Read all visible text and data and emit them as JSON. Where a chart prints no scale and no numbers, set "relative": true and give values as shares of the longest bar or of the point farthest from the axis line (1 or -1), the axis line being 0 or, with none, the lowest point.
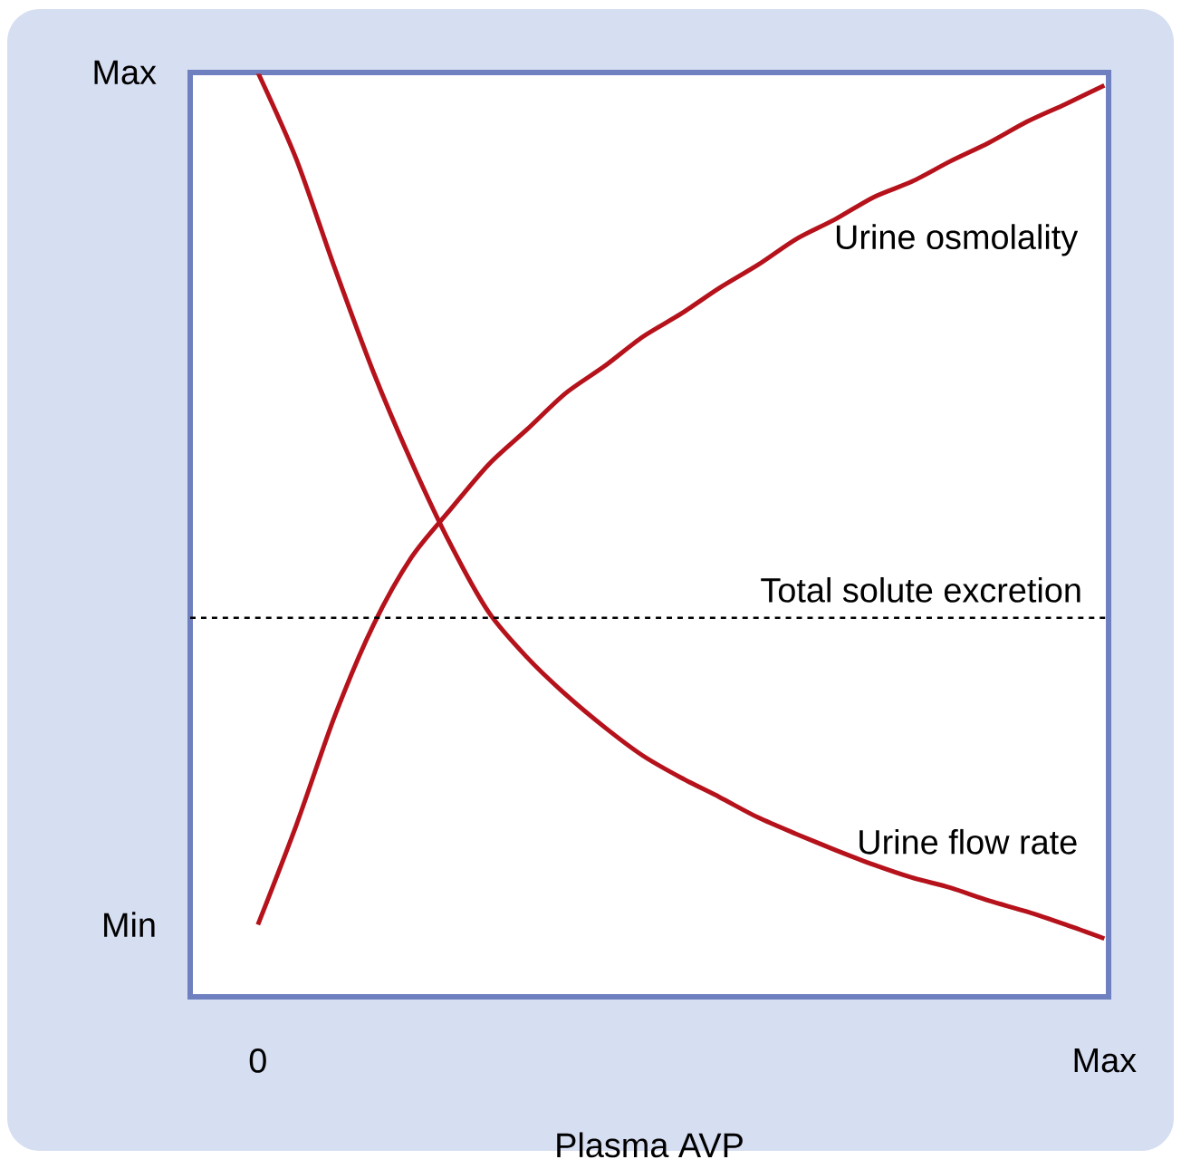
{
  "chart_data": {
    "type": "line",
    "xlabel": "Plasma AVP",
    "relative": true,
    "categories": [
      "0",
      null,
      null,
      null,
      null,
      null,
      null,
      null,
      null,
      null,
      null,
      null,
      null,
      null,
      null,
      null,
      null,
      null,
      null,
      null,
      null,
      null,
      "Max"
    ],
    "annotations": [
      "Max",
      "Min"
    ],
    "grid": false,
    "marker": "none",
    "line_style": "solid",
    "series": [
      {
        "name": "Urine osmolality",
        "color": "#b5121b",
        "values": [
          0.078,
          0.186,
          0.304,
          0.402,
          0.476,
          0.527,
          0.576,
          0.614,
          0.653,
          0.682,
          0.714,
          0.739,
          0.767,
          0.792,
          0.82,
          0.841,
          0.865,
          0.882,
          0.904,
          0.924,
          0.947,
          0.966,
          0.986
        ]
      },
      {
        "name": "Urine flow rate",
        "color": "#b5121b",
        "values": [
          1.0,
          0.906,
          0.788,
          0.676,
          0.578,
          0.49,
          0.416,
          0.367,
          0.327,
          0.292,
          0.261,
          0.237,
          0.216,
          0.194,
          0.176,
          0.159,
          0.143,
          0.129,
          0.118,
          0.104,
          0.092,
          0.078,
          0.063
        ]
      }
    ],
    "ref_lines": [
      {
        "axis": "y",
        "value": 0.41,
        "label": "Total solute excretion",
        "color": "#000000",
        "line_style": "dashed"
      }
    ]
  }
}
